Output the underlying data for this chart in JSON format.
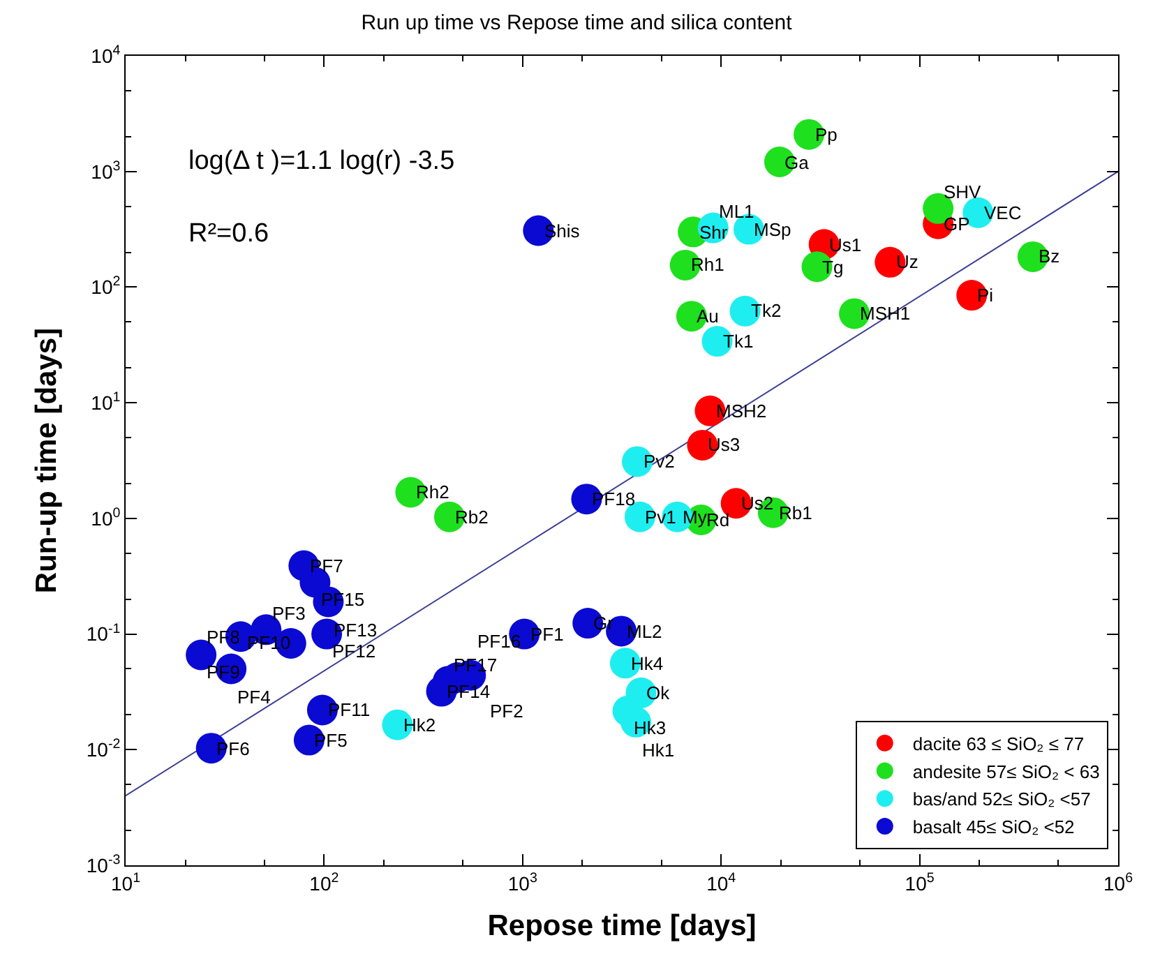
{
  "chart_data": {
    "type": "scatter",
    "title": "Run up time vs Repose time and silica content",
    "xlabel": "Repose time [days]",
    "ylabel": "Run-up time [days]",
    "log": "xy",
    "grid": false,
    "legend": "bottom right",
    "marker": "circle",
    "xlim": [
      10,
      1000000
    ],
    "ylim": [
      0.001,
      10000
    ],
    "xticks": [
      {
        "value": 10,
        "label": "10$^{1}$"
      },
      {
        "value": 100,
        "label": "10$^{2}$"
      },
      {
        "value": 1000,
        "label": "10$^{3}$"
      },
      {
        "value": 10000,
        "label": "10$^{4}$"
      },
      {
        "value": 100000,
        "label": "10$^{5}$"
      },
      {
        "value": 1000000,
        "label": "10$^{6}$"
      }
    ],
    "yticks": [
      {
        "value": 0.001,
        "label": "10$^{-3}$"
      },
      {
        "value": 0.01,
        "label": "10$^{-2}$"
      },
      {
        "value": 0.1,
        "label": "10$^{-1}$"
      },
      {
        "value": 1,
        "label": "10$^{0}$"
      },
      {
        "value": 10,
        "label": "10$^{1}$"
      },
      {
        "value": 100,
        "label": "10$^{2}$"
      },
      {
        "value": 1000,
        "label": "10$^{3}$"
      },
      {
        "value": 10000,
        "label": "10$^{4}$"
      }
    ],
    "annotations": [
      "log(Δ t )=1.1 log(r) -3.5",
      "R²=0.6"
    ],
    "series": [
      {
        "type": "line",
        "color": "#3c3c96",
        "x": [
          10,
          1000000
        ],
        "values": [
          0.004,
          1000
        ],
        "marker": "none"
      },
      {
        "name": "dacite 63 ≤ SiO₂ ≤ 77",
        "color": "#ff0000",
        "x": [
          33000,
          71000,
          124000,
          183000,
          8800,
          8050,
          11900
        ],
        "values": [
          234,
          164,
          353,
          85,
          8.5,
          4.3,
          1.35
        ],
        "value_labels": [
          "Us1",
          "Uz",
          "GP",
          "Pi",
          "MSH2",
          "Us3",
          "Us2"
        ]
      },
      {
        "name": "andesite 57≤ SiO₂ < 63",
        "color": "#1ee01e",
        "x": [
          27700,
          19700,
          124000,
          7230,
          6590,
          30400,
          372000,
          7100,
          46900,
          18300,
          7930,
          273,
          428
        ],
        "values": [
          2090,
          1210,
          478,
          300,
          155,
          150,
          183,
          56,
          59,
          1.12,
          0.97,
          1.68,
          1.03
        ],
        "value_labels": [
          "Pp",
          "Ga",
          "SHV",
          "Shr",
          "Rh1",
          "Tg",
          "Bz",
          "Au",
          "MSH1",
          "Rb1",
          "Rd",
          "Rh2",
          "Rb2"
        ]
      },
      {
        "name": "bas/and 52≤ SiO₂ <57",
        "color": "#1eeef0",
        "x": [
          9120,
          13800,
          197000,
          13200,
          9550,
          3780,
          3900,
          6010,
          3290,
          3950,
          3390,
          3720,
          234
        ],
        "values": [
          325,
          316,
          440,
          62,
          34,
          3.1,
          1.03,
          1.03,
          0.056,
          0.031,
          0.0216,
          0.0173,
          0.0164
        ],
        "value_labels": [
          "ML1",
          "MSp",
          "VEC",
          "Tk2",
          "Tk1",
          "Pv2",
          "Pv1",
          "My",
          "Hk4",
          "Ok",
          "Hk3",
          "Hk1",
          "Hk2"
        ]
      },
      {
        "name": "basalt 45≤ SiO₂ <52",
        "color": "#0a0ad2",
        "x": [
          1200,
          2100,
          2130,
          3140,
          1020,
          79,
          90,
          105,
          103,
          68,
          51,
          38,
          24,
          34,
          98,
          84,
          27,
          390,
          421,
          469,
          547
        ],
        "values": [
          308,
          1.47,
          0.124,
          0.106,
          0.1,
          0.39,
          0.28,
          0.19,
          0.1,
          0.083,
          0.109,
          0.095,
          0.066,
          0.05,
          0.022,
          0.0121,
          0.0103,
          0.032,
          0.039,
          0.042,
          0.044
        ],
        "value_labels": [
          "Shis",
          "PF18",
          "Gr",
          "ML2",
          "PF1",
          "PF7",
          "PF15",
          "PF13",
          "PF12",
          "PF10",
          "PF3",
          "PF8",
          "PF9",
          "PF4",
          "PF11",
          "PF5",
          "PF6",
          "PF14",
          "PF17",
          "PF16",
          "PF2"
        ]
      }
    ]
  }
}
